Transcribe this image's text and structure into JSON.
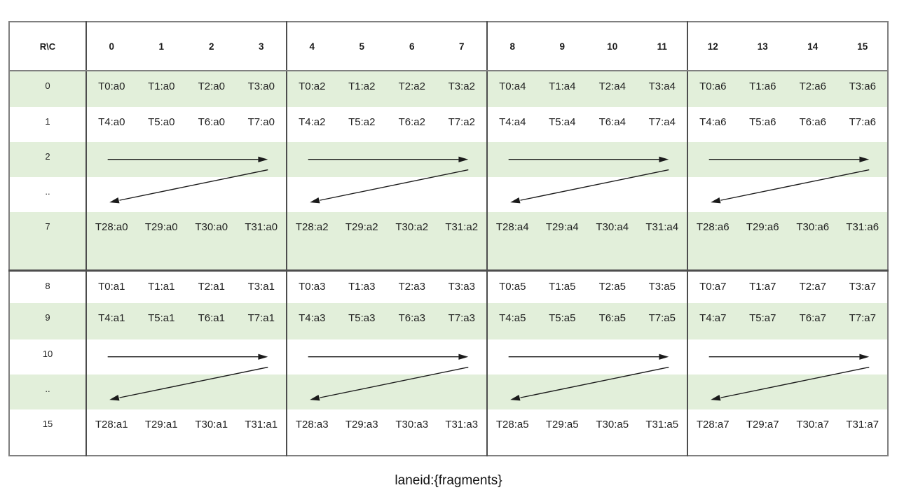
{
  "caption": "laneid:{fragments}",
  "colors": {
    "band_green": "#e2efda",
    "quadrant_line": "#4d4d4d",
    "outer_border": "#7f7f7f",
    "header_rule": "#808080",
    "text": "#1f1f1f",
    "arrow": "#1a1a1a"
  },
  "table": {
    "corner_label": "R\\C",
    "column_headers": [
      "0",
      "1",
      "2",
      "3",
      "4",
      "5",
      "6",
      "7",
      "8",
      "9",
      "10",
      "11",
      "12",
      "13",
      "14",
      "15"
    ],
    "blocks": [
      {
        "rows": [
          {
            "label": "0",
            "type": "data",
            "cells": [
              "T0:a0",
              "T1:a0",
              "T2:a0",
              "T3:a0",
              "T0:a2",
              "T1:a2",
              "T2:a2",
              "T3:a2",
              "T0:a4",
              "T1:a4",
              "T2:a4",
              "T3:a4",
              "T0:a6",
              "T1:a6",
              "T2:a6",
              "T3:a6"
            ]
          },
          {
            "label": "1",
            "type": "data",
            "cells": [
              "T4:a0",
              "T5:a0",
              "T6:a0",
              "T7:a0",
              "T4:a2",
              "T5:a2",
              "T6:a2",
              "T7:a2",
              "T4:a4",
              "T5:a4",
              "T6:a4",
              "T7:a4",
              "T4:a6",
              "T5:a6",
              "T6:a6",
              "T7:a6"
            ]
          },
          {
            "label": "2",
            "type": "arrows"
          },
          {
            "label": "..",
            "type": "arrows-cont"
          },
          {
            "label": "7",
            "type": "data",
            "cells": [
              "T28:a0",
              "T29:a0",
              "T30:a0",
              "T31:a0",
              "T28:a2",
              "T29:a2",
              "T30:a2",
              "T31:a2",
              "T28:a4",
              "T29:a4",
              "T30:a4",
              "T31:a4",
              "T28:a6",
              "T29:a6",
              "T30:a6",
              "T31:a6"
            ]
          }
        ]
      },
      {
        "rows": [
          {
            "label": "8",
            "type": "data",
            "cells": [
              "T0:a1",
              "T1:a1",
              "T2:a1",
              "T3:a1",
              "T0:a3",
              "T1:a3",
              "T2:a3",
              "T3:a3",
              "T0:a5",
              "T1:a5",
              "T2:a5",
              "T3:a5",
              "T0:a7",
              "T1:a7",
              "T2:a7",
              "T3:a7"
            ]
          },
          {
            "label": "9",
            "type": "data",
            "cells": [
              "T4:a1",
              "T5:a1",
              "T6:a1",
              "T7:a1",
              "T4:a3",
              "T5:a3",
              "T6:a3",
              "T7:a3",
              "T4:a5",
              "T5:a5",
              "T6:a5",
              "T7:a5",
              "T4:a7",
              "T5:a7",
              "T6:a7",
              "T7:a7"
            ]
          },
          {
            "label": "10",
            "type": "arrows"
          },
          {
            "label": "..",
            "type": "arrows-cont"
          },
          {
            "label": "15",
            "type": "data",
            "cells": [
              "T28:a1",
              "T29:a1",
              "T30:a1",
              "T31:a1",
              "T28:a3",
              "T29:a3",
              "T30:a3",
              "T31:a3",
              "T28:a5",
              "T29:a5",
              "T30:a5",
              "T31:a5",
              "T28:a7",
              "T29:a7",
              "T30:a7",
              "T31:a7"
            ]
          }
        ]
      }
    ]
  }
}
